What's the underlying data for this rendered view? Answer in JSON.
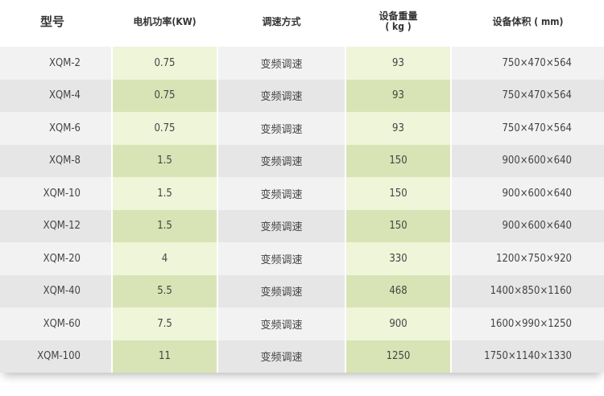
{
  "headers": {
    "model": "型号",
    "power": "电机功率(KW)",
    "speed": "调速方式",
    "weight_1": "设备重量",
    "weight_2": "( kg )",
    "volume": "设备体积 ( mm)"
  },
  "colors": {
    "green_light": "#eef5d9",
    "green_dark": "#d8e4b5",
    "gray_light": "#f2f2f2",
    "gray_dark": "#e6e6e6"
  },
  "rows": [
    {
      "model": "XQM-2",
      "power": "0.75",
      "speed": "变频调速",
      "weight": "93",
      "volume": "750×470×564"
    },
    {
      "model": "XQM-4",
      "power": "0.75",
      "speed": "变频调速",
      "weight": "93",
      "volume": "750×470×564"
    },
    {
      "model": "XQM-6",
      "power": "0.75",
      "speed": "变频调速",
      "weight": "93",
      "volume": "750×470×564"
    },
    {
      "model": "XQM-8",
      "power": "1.5",
      "speed": "变频调速",
      "weight": "150",
      "volume": "900×600×640"
    },
    {
      "model": "XQM-10",
      "power": "1.5",
      "speed": "变频调速",
      "weight": "150",
      "volume": "900×600×640"
    },
    {
      "model": "XQM-12",
      "power": "1.5",
      "speed": "变频调速",
      "weight": "150",
      "volume": "900×600×640"
    },
    {
      "model": "XQM-20",
      "power": "4",
      "speed": "变频调速",
      "weight": "330",
      "volume": "1200×750×920"
    },
    {
      "model": "XQM-40",
      "power": "5.5",
      "speed": "变频调速",
      "weight": "468",
      "volume": "1400×850×1160"
    },
    {
      "model": "XQM-60",
      "power": "7.5",
      "speed": "变频调速",
      "weight": "900",
      "volume": "1600×990×1250"
    },
    {
      "model": "XQM-100",
      "power": "11",
      "speed": "变频调速",
      "weight": "1250",
      "volume": "1750×1140×1330"
    }
  ]
}
